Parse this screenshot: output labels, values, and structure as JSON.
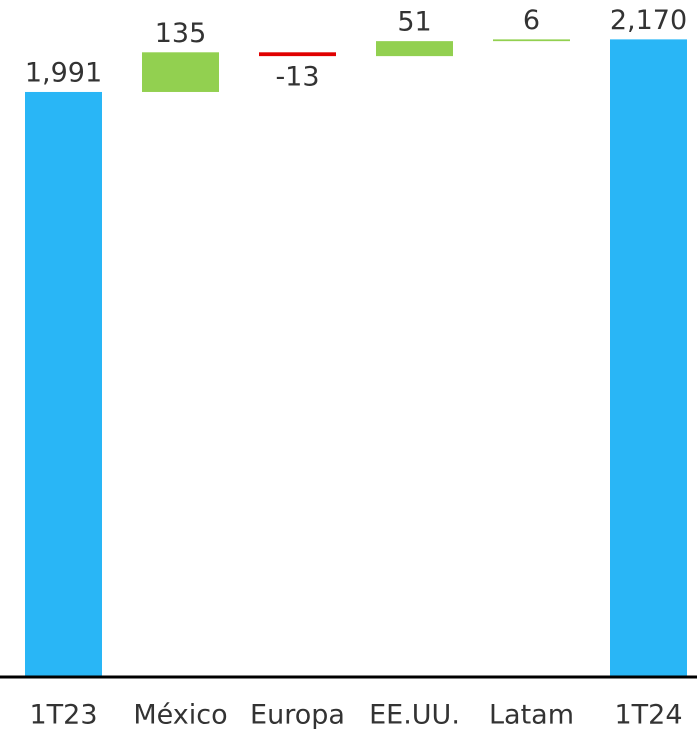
{
  "chart_data": {
    "type": "waterfall",
    "categories": [
      "1T23",
      "México",
      "Europa",
      "EE.UU.",
      "Latam",
      "1T24"
    ],
    "values": [
      1991,
      135,
      -13,
      51,
      6,
      2170
    ],
    "value_labels": [
      "1,991",
      "135",
      "-13",
      "51",
      "6",
      "2,170"
    ],
    "measure": [
      "absolute",
      "relative",
      "relative",
      "relative",
      "relative",
      "absolute"
    ],
    "colors": {
      "absolute": "#29b6f6",
      "increase": "#92d050",
      "decrease": "#e00000"
    },
    "ylim": [
      0,
      2304
    ]
  }
}
